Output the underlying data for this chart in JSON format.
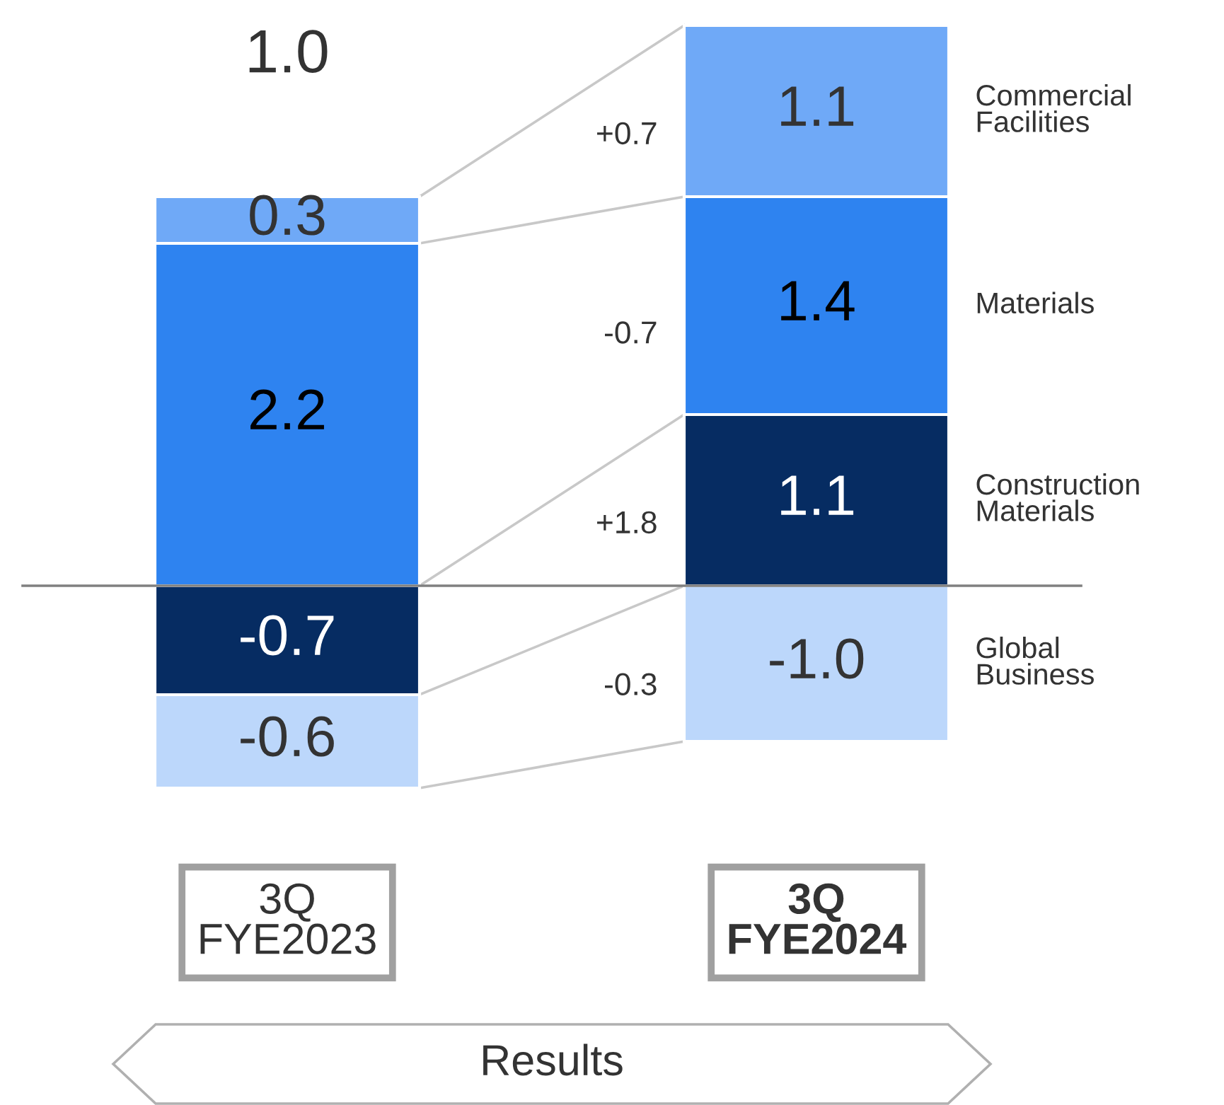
{
  "chart_data": {
    "type": "bar",
    "stacked": true,
    "categories": [
      "3Q\nFYE2023",
      "3Q\nFYE2024"
    ],
    "series": [
      {
        "name": "Construction\nMaterials",
        "color": "#062c62",
        "values": [
          -0.7,
          1.1
        ],
        "value_labels": [
          "-0.7",
          "1.1"
        ]
      },
      {
        "name": "Materials",
        "color": "#2e83f0",
        "values": [
          2.2,
          1.4
        ],
        "value_labels": [
          "2.2",
          "1.4"
        ]
      },
      {
        "name": "Commercial\nFacilities",
        "color": "#6fa9f7",
        "values": [
          0.3,
          1.1
        ],
        "value_labels": [
          "0.3",
          "1.1"
        ]
      },
      {
        "name": "Global\nBusiness",
        "color": "#bcd7fb",
        "values": [
          -0.6,
          -1.0
        ],
        "value_labels": [
          "-0.6",
          "-1.0"
        ]
      }
    ],
    "totals": [
      "1.0",
      null
    ],
    "annotations": [
      "+1.8",
      "-0.7",
      "+0.7",
      "-0.3",
      "Results"
    ]
  }
}
